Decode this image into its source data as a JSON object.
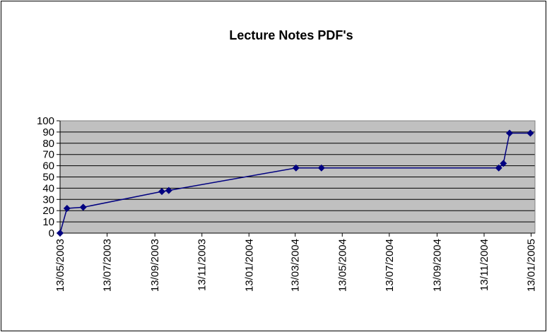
{
  "chart_data": {
    "type": "line",
    "title": "Lecture Notes PDF's",
    "x": [
      "2003-05-13",
      "2003-05-22",
      "2003-06-12",
      "2003-09-22",
      "2003-10-01",
      "2004-03-14",
      "2004-04-16",
      "2004-12-02",
      "2004-12-08",
      "2004-12-16",
      "2005-01-12"
    ],
    "series": [
      {
        "name": "Lecture Notes PDF's",
        "color": "#000080",
        "values": [
          0,
          22,
          23,
          37,
          38,
          58,
          58,
          58,
          62,
          89,
          89
        ]
      }
    ],
    "xlim": [
      "2003-05-13",
      "2005-01-18"
    ],
    "xticks": [
      {
        "value": "2003-05-13",
        "label": "13/05/2003"
      },
      {
        "value": "2003-07-13",
        "label": "13/07/2003"
      },
      {
        "value": "2003-09-13",
        "label": "13/09/2003"
      },
      {
        "value": "2003-11-13",
        "label": "13/11/2003"
      },
      {
        "value": "2004-01-13",
        "label": "13/01/2004"
      },
      {
        "value": "2004-03-13",
        "label": "13/03/2004"
      },
      {
        "value": "2004-05-13",
        "label": "13/05/2004"
      },
      {
        "value": "2004-07-13",
        "label": "13/07/2004"
      },
      {
        "value": "2004-09-13",
        "label": "13/09/2004"
      },
      {
        "value": "2004-11-13",
        "label": "13/11/2004"
      },
      {
        "value": "2005-01-13",
        "label": "13/01/2005"
      }
    ],
    "ylim": [
      0,
      100
    ],
    "yticks": [
      0,
      10,
      20,
      30,
      40,
      50,
      60,
      70,
      80,
      90,
      100
    ],
    "grid": true
  }
}
